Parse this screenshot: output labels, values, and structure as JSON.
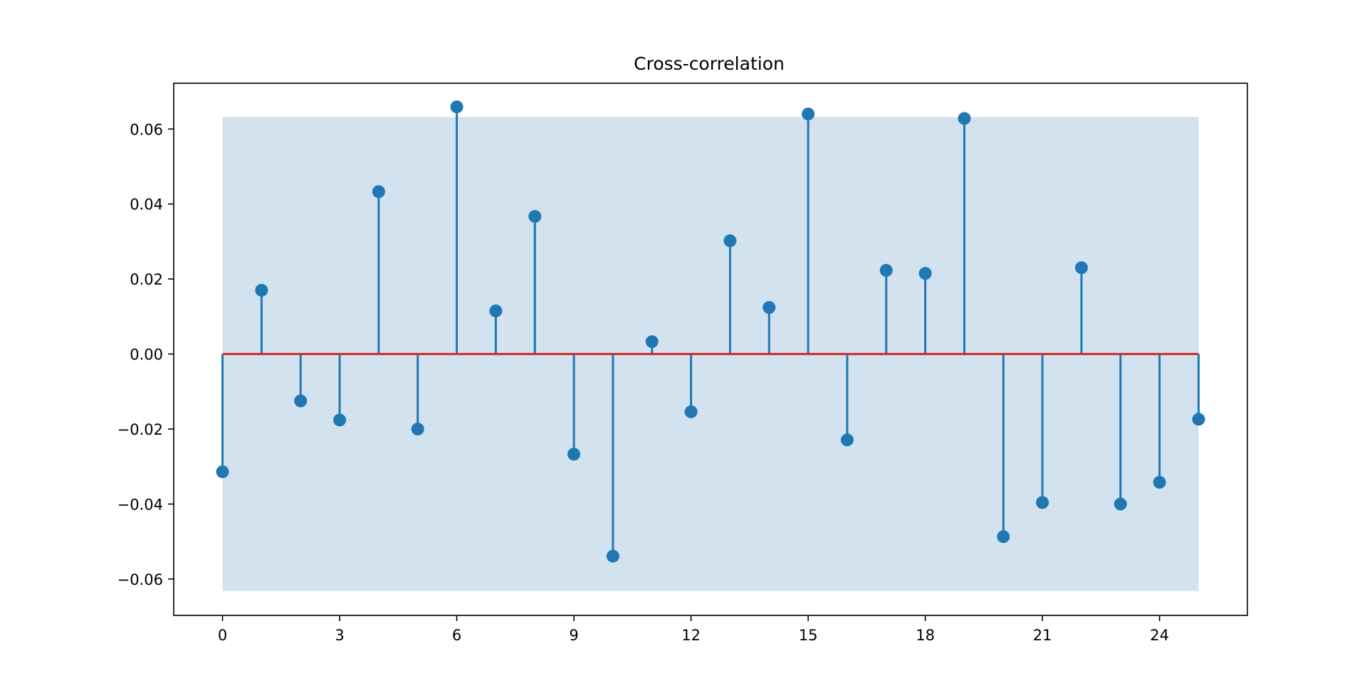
{
  "chart_data": {
    "type": "stem",
    "title": "Cross-correlation",
    "xlabel": "",
    "ylabel": "",
    "x": [
      0,
      1,
      2,
      3,
      4,
      5,
      6,
      7,
      8,
      9,
      10,
      11,
      12,
      13,
      14,
      15,
      16,
      17,
      18,
      19,
      20,
      21,
      22,
      23,
      24,
      25
    ],
    "y": [
      -0.0314,
      0.017,
      -0.0125,
      -0.0176,
      0.0433,
      -0.02,
      0.0659,
      0.0115,
      0.0367,
      -0.0267,
      -0.0539,
      0.0033,
      -0.0154,
      0.0302,
      0.0124,
      0.064,
      -0.0229,
      0.0223,
      0.0215,
      0.0628,
      -0.0487,
      -0.0396,
      0.023,
      -0.04,
      -0.0342,
      -0.0174
    ],
    "confidence_band": [
      -0.0632,
      0.0632
    ],
    "baseline": 0,
    "xlim": [
      -1.25,
      26.25
    ],
    "ylim": [
      -0.0697,
      0.0722
    ],
    "xticks": [
      0,
      3,
      6,
      9,
      12,
      15,
      18,
      21,
      24
    ],
    "yticks": [
      0.06,
      0.04,
      0.02,
      0.0,
      -0.02,
      -0.04,
      -0.06
    ],
    "ytick_labels": [
      "0.06",
      "0.04",
      "0.02",
      "0.00",
      "−0.02",
      "−0.04",
      "−0.06"
    ],
    "grid": false,
    "colors": {
      "stem": "#1f77b4",
      "baseline": "#d62728",
      "band": "#d2e3ef"
    }
  }
}
